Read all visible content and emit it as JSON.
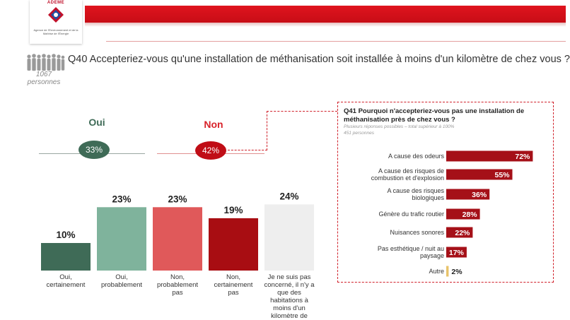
{
  "logo": {
    "name": "ADEME",
    "caption": "Agence de l'Environnement et de la Maîtrise de l'Énergie"
  },
  "sample": {
    "count": "1067",
    "unit": "personnes"
  },
  "q40": {
    "question": "Q40 Accepteriez-vous qu'une installation de méthanisation soit installée à moins d'un kilomètre de chez vous ?",
    "oui_label": "Oui",
    "oui_total": "33%",
    "non_label": "Non",
    "non_total": "42%"
  },
  "q41": {
    "title": "Q41 Pourquoi n'accepteriez-vous pas une installation de méthanisation près de chez vous ?",
    "note": "Plusieurs réponses possibles – total supérieur à 100%",
    "base": "451 personnes"
  },
  "colors": {
    "oui_dark": "#3f6b57",
    "oui_light": "#7fb39c",
    "non_light": "#e0595a",
    "non_dark": "#a80d12",
    "neutral": "#eeeeee",
    "q41_bar": "#a51018",
    "q41_bar_small": "#e8c36a",
    "brand_red": "#e0141e"
  },
  "chart_data": [
    {
      "type": "bar",
      "categories": [
        "Oui, certainement",
        "Oui, probablement",
        "Non, probablement pas",
        "Non, certainement pas",
        "Je ne suis pas concerné, il n'y a que des habitations à moins d'un kilomètre de"
      ],
      "values": [
        10,
        23,
        23,
        19,
        24
      ],
      "labels": [
        "10%",
        "23%",
        "23%",
        "19%",
        "24%"
      ],
      "ylim": [
        0,
        30
      ]
    },
    {
      "type": "bar",
      "orientation": "horizontal",
      "categories": [
        "A cause des odeurs",
        "A cause des risques de combustion et d'explosion",
        "A cause des risques biologiques",
        "Génère du trafic routier",
        "Nuisances sonores",
        "Pas esthétique / nuit au paysage",
        "Autre"
      ],
      "values": [
        72,
        55,
        36,
        28,
        22,
        17,
        2
      ],
      "labels": [
        "72%",
        "55%",
        "36%",
        "28%",
        "22%",
        "17%",
        "2%"
      ],
      "xlim": [
        0,
        80
      ]
    }
  ]
}
